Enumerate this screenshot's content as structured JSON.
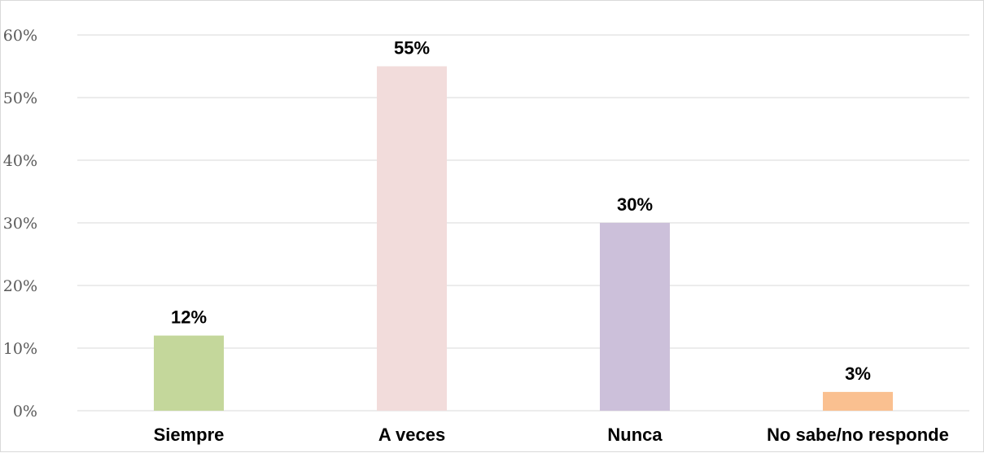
{
  "chart_data": {
    "type": "bar",
    "categories": [
      "Siempre",
      "A veces",
      "Nunca",
      "No sabe/no responde"
    ],
    "values": [
      12,
      55,
      30,
      3
    ],
    "value_labels": [
      "12%",
      "55%",
      "30%",
      "3%"
    ],
    "colors": [
      "#c4d79b",
      "#f2dcdb",
      "#ccc0da",
      "#fac090"
    ],
    "ylim": [
      0,
      60
    ],
    "yticks": [
      0,
      10,
      20,
      30,
      40,
      50,
      60
    ],
    "ytick_labels": [
      "0%",
      "10%",
      "20%",
      "30%",
      "40%",
      "50%",
      "60%"
    ],
    "gridlines": true,
    "gridline_color": "#d9d9d9",
    "legend": "none"
  }
}
